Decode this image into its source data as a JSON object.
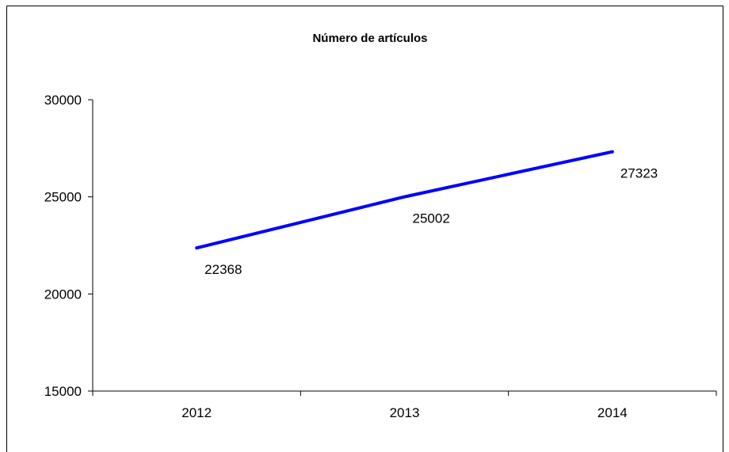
{
  "chart_data": {
    "type": "line",
    "title": "Número de artículos",
    "xlabel": "",
    "ylabel": "",
    "categories": [
      "2012",
      "2013",
      "2014"
    ],
    "series": [
      {
        "values": [
          22368,
          25002,
          27323
        ],
        "color": "#0000ff",
        "data_labels": [
          "22368",
          "25002",
          "27323"
        ]
      }
    ],
    "ylim": [
      15000,
      30000
    ],
    "yticks": [
      15000,
      20000,
      25000,
      30000
    ],
    "ytick_labels": [
      "15000",
      "20000",
      "25000",
      "30000"
    ],
    "grid": false,
    "legend": "none",
    "colors": {
      "axis": "#000000",
      "frame": "#000000",
      "background": "#ffffff"
    }
  }
}
